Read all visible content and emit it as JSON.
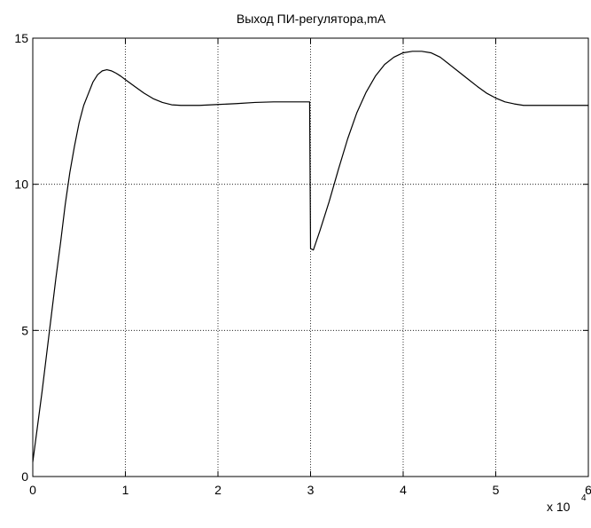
{
  "chart_data": {
    "type": "line",
    "title": "Выход ПИ-регулятора,mA",
    "xlabel": "",
    "ylabel": "",
    "xlim": [
      0,
      60000
    ],
    "ylim": [
      0,
      15
    ],
    "x_ticks": [
      0,
      10000,
      20000,
      30000,
      40000,
      50000,
      60000
    ],
    "x_tick_labels": [
      "0",
      "1",
      "2",
      "3",
      "4",
      "5",
      "6"
    ],
    "x_multiplier": {
      "base": "x 10",
      "exponent": "4"
    },
    "y_ticks": [
      0,
      5,
      10,
      15
    ],
    "y_tick_labels": [
      "0",
      "5",
      "10",
      "15"
    ],
    "grid": true,
    "line_color": "#000000",
    "series": [
      {
        "x": [
          0,
          500,
          1000,
          1500,
          2000,
          2500,
          3000,
          3500,
          4000,
          4500,
          5000,
          5500,
          6000,
          6500,
          7000,
          7500,
          8000,
          8500,
          9000,
          9500,
          10000,
          11000,
          12000,
          13000,
          14000,
          15000,
          16000,
          18000,
          20000,
          22000,
          24000,
          26000,
          28000,
          29900,
          30000,
          30300,
          31000,
          32000,
          33000,
          34000,
          35000,
          36000,
          37000,
          38000,
          39000,
          40000,
          41000,
          42000,
          43000,
          44000,
          45000,
          46000,
          47000,
          48000,
          49000,
          50000,
          51000,
          52000,
          53000,
          54000,
          55000,
          56000,
          58000,
          60000
        ],
        "y": [
          0.5,
          1.7,
          2.9,
          4.2,
          5.5,
          6.8,
          8.0,
          9.3,
          10.4,
          11.3,
          12.1,
          12.7,
          13.1,
          13.5,
          13.75,
          13.88,
          13.92,
          13.88,
          13.8,
          13.7,
          13.58,
          13.35,
          13.12,
          12.93,
          12.8,
          12.72,
          12.7,
          12.7,
          12.73,
          12.76,
          12.8,
          12.82,
          12.82,
          12.82,
          7.8,
          7.75,
          8.4,
          9.4,
          10.5,
          11.55,
          12.45,
          13.15,
          13.7,
          14.1,
          14.35,
          14.5,
          14.55,
          14.55,
          14.5,
          14.35,
          14.1,
          13.85,
          13.6,
          13.35,
          13.12,
          12.95,
          12.82,
          12.75,
          12.7,
          12.7,
          12.7,
          12.7,
          12.7,
          12.7
        ]
      }
    ]
  }
}
